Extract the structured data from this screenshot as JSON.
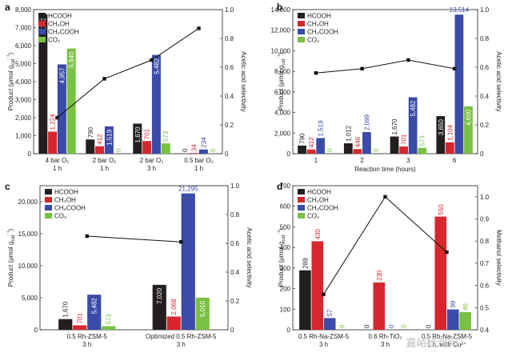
{
  "colors": {
    "HCOOH": "#231f20",
    "CH3OH": "#d7262e",
    "CH3COOH": "#3b4ba8",
    "CO2": "#7ac143",
    "line": "#111111"
  },
  "watermark": "嘉峪检测网",
  "chart_data": [
    {
      "panel": "a",
      "type": "bar",
      "legend_position": "top-left",
      "legend": [
        "HCOOH",
        "CH₃OH",
        "CH₃COOH",
        "CO₂"
      ],
      "categories": [
        [
          "4 bar O₂",
          "1 h"
        ],
        [
          "2 bar O₂",
          "1 h"
        ],
        [
          "2 bar O₂",
          "3 h"
        ],
        [
          "0.5 bar O₂",
          "1 h"
        ]
      ],
      "series": [
        {
          "key": "HCOOH",
          "name": "HCOOH",
          "values": [
            7753,
            790,
            1670,
            0
          ],
          "labels": [
            "7,753",
            "790",
            "1,670",
            "0"
          ]
        },
        {
          "key": "CH3OH",
          "name": "CH₃OH",
          "values": [
            1224,
            412,
            701,
            34
          ],
          "labels": [
            "1,224",
            "412",
            "701",
            "34"
          ]
        },
        {
          "key": "CH3COOH",
          "name": "CH₃COOH",
          "values": [
            4957,
            1519,
            5482,
            234
          ],
          "labels": [
            "4,957",
            "1,519",
            "5,482",
            "234"
          ]
        },
        {
          "key": "CO2",
          "name": "CO₂",
          "values": [
            5840,
            0,
            573,
            0
          ],
          "labels": [
            "5,840",
            "0",
            "573",
            "0"
          ]
        }
      ],
      "selectivity": [
        0.25,
        0.52,
        0.65,
        0.87
      ],
      "ylim": [
        0,
        8000
      ],
      "yticks": [
        0,
        1000,
        2000,
        3000,
        4000,
        5000,
        6000,
        7000,
        8000
      ],
      "ytick_labels": [
        "0",
        "1,000",
        "2,000",
        "3,000",
        "4,000",
        "5,000",
        "6,000",
        "7,000",
        "8,000"
      ],
      "y2lim": [
        0,
        1.0
      ],
      "y2ticks": [
        0,
        0.2,
        0.4,
        0.6,
        0.8,
        1.0
      ],
      "y2tick_labels": [
        "0",
        "0.2",
        "0.4",
        "0.6",
        "0.8",
        "1.0"
      ],
      "ylabel": "Product (μmol g_cat⁻¹)",
      "y2label": "Acetic acid selectivity",
      "xlabel": ""
    },
    {
      "panel": "b",
      "type": "bar",
      "legend_position": "top-left",
      "legend": [
        "HCOOH",
        "CH₃OH",
        "CH₃COOH",
        "CO₂"
      ],
      "categories": [
        [
          "1"
        ],
        [
          "2"
        ],
        [
          "3"
        ],
        [
          "6"
        ]
      ],
      "series": [
        {
          "key": "HCOOH",
          "name": "HCOOH",
          "values": [
            790,
            1012,
            1670,
            3650
          ],
          "labels": [
            "790",
            "1,012",
            "1,670",
            "3,650"
          ]
        },
        {
          "key": "CH3OH",
          "name": "CH₃OH",
          "values": [
            412,
            446,
            701,
            1104
          ],
          "labels": [
            "412",
            "446",
            "701",
            "1,104"
          ]
        },
        {
          "key": "CH3COOH",
          "name": "CH₃COOH",
          "values": [
            1519,
            2099,
            5482,
            13514
          ],
          "labels": [
            "1,519",
            "2,099",
            "5,482",
            "13,514"
          ]
        },
        {
          "key": "CO2",
          "name": "CO₂",
          "values": [
            0,
            0,
            573,
            4600
          ],
          "labels": [
            "0",
            "0",
            "573",
            "4,600"
          ]
        }
      ],
      "selectivity": [
        0.56,
        0.59,
        0.65,
        0.59
      ],
      "ylim": [
        0,
        14000
      ],
      "yticks": [
        0,
        2000,
        4000,
        6000,
        8000,
        10000,
        12000,
        14000
      ],
      "ytick_labels": [
        "0",
        "2,000",
        "4,000",
        "6,000",
        "8,000",
        "10,000",
        "12,000",
        "14,000"
      ],
      "y2lim": [
        0,
        1.0
      ],
      "y2ticks": [
        0,
        0.2,
        0.4,
        0.6,
        0.8,
        1.0
      ],
      "y2tick_labels": [
        "0",
        "0.2",
        "0.4",
        "0.6",
        "0.8",
        "1.0"
      ],
      "ylabel": "Product (μmol g_cat⁻¹)",
      "y2label": "Acetic acid selectivity",
      "xlabel": "Reaction time (hours)"
    },
    {
      "panel": "c",
      "type": "bar",
      "legend_position": "top-left",
      "legend": [
        "HCOOH",
        "CH₃OH",
        "CH₃COOH",
        "CO₂"
      ],
      "categories": [
        [
          "0.5 Rh-ZSM-5",
          "3 h"
        ],
        [
          "Optimized 0.5 Rh-ZSM-5",
          "3 h"
        ]
      ],
      "series": [
        {
          "key": "HCOOH",
          "name": "HCOOH",
          "values": [
            1670,
            7020
          ],
          "labels": [
            "1,670",
            "7,020"
          ]
        },
        {
          "key": "CH3OH",
          "name": "CH₃OH",
          "values": [
            701,
            2068
          ],
          "labels": [
            "701",
            "2,068"
          ]
        },
        {
          "key": "CH3COOH",
          "name": "CH₃COOH",
          "values": [
            5482,
            21295
          ],
          "labels": [
            "5,482",
            "21,295"
          ]
        },
        {
          "key": "CO2",
          "name": "CO₂",
          "values": [
            573,
            5010
          ],
          "labels": [
            "573",
            "5,010"
          ]
        }
      ],
      "selectivity": [
        0.65,
        0.61
      ],
      "ylim": [
        0,
        22500
      ],
      "yticks": [
        0,
        5000,
        10000,
        15000,
        20000
      ],
      "ytick_labels": [
        "0",
        "5,000",
        "10,000",
        "15,000",
        "20,000"
      ],
      "y2lim": [
        0,
        1.0
      ],
      "y2ticks": [
        0,
        0.2,
        0.4,
        0.6,
        0.8,
        1.0
      ],
      "y2tick_labels": [
        "0",
        "0.2",
        "0.4",
        "0.6",
        "0.8",
        "1.0"
      ],
      "ylabel": "Product (μmol g_cat⁻¹)",
      "y2label": "Acetic acid selectivity",
      "xlabel": ""
    },
    {
      "panel": "d",
      "type": "bar",
      "legend_position": "top-left",
      "legend": [
        "HCOOH",
        "CH₃OH",
        "CH₃COOH",
        "CO₂"
      ],
      "categories": [
        [
          "0.5 Rh-Na-ZSM-5",
          "3 h"
        ],
        [
          "0.6 Rh-TiO₂",
          "3 h"
        ],
        [
          "0.5 Rh-Na-ZSM-5",
          "1 h, with Cu²⁺"
        ]
      ],
      "series": [
        {
          "key": "HCOOH",
          "name": "HCOOH",
          "values": [
            289,
            0,
            0
          ],
          "labels": [
            "289",
            "0",
            "0"
          ]
        },
        {
          "key": "CH3OH",
          "name": "CH₃OH",
          "values": [
            430,
            230,
            550
          ],
          "labels": [
            "430",
            "230",
            "550"
          ]
        },
        {
          "key": "CH3COOH",
          "name": "CH₃COOH",
          "values": [
            57,
            0,
            99
          ],
          "labels": [
            "57",
            "0",
            "99"
          ]
        },
        {
          "key": "CO2",
          "name": "CO₂",
          "values": [
            0,
            0,
            86
          ],
          "labels": [
            "0",
            "0",
            "86"
          ]
        }
      ],
      "selectivity": [
        0.56,
        1.0,
        0.75
      ],
      "ylim": [
        0,
        700
      ],
      "yticks": [
        0,
        100,
        200,
        300,
        400,
        500,
        600,
        700
      ],
      "ytick_labels": [
        "0",
        "100",
        "200",
        "300",
        "400",
        "500",
        "600",
        "700"
      ],
      "y2lim": [
        0.4,
        1.05
      ],
      "y2ticks": [
        0.4,
        0.5,
        0.6,
        0.7,
        0.8,
        0.9,
        1.0
      ],
      "y2tick_labels": [
        "0.4",
        "0.5",
        "0.6",
        "0.7",
        "0.8",
        "0.9",
        "1.0"
      ],
      "ylabel": "Product (μmol g_cat⁻¹)",
      "y2label": "Methanol selectivity",
      "xlabel": ""
    }
  ]
}
